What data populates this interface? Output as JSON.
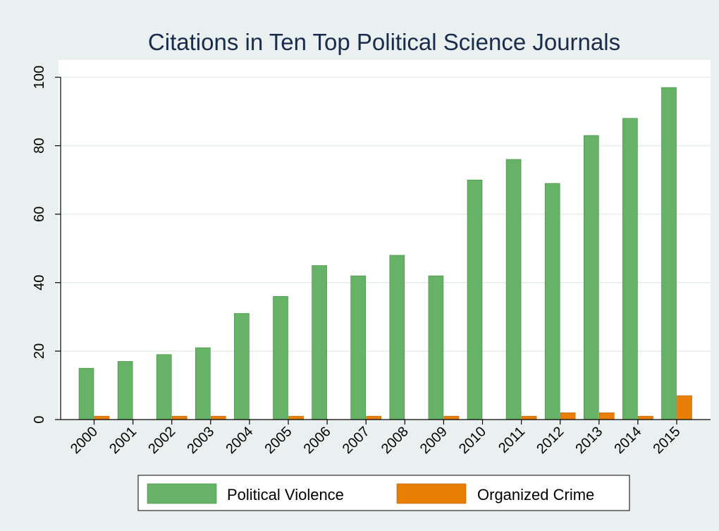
{
  "chart_data": {
    "type": "bar",
    "title": "Citations in Ten Top Political Science Journals",
    "xlabel": "",
    "ylabel": "",
    "categories": [
      "2000",
      "2001",
      "2002",
      "2003",
      "2004",
      "2005",
      "2006",
      "2007",
      "2008",
      "2009",
      "2010",
      "2011",
      "2012",
      "2013",
      "2014",
      "2015"
    ],
    "series": [
      {
        "name": "Political Violence",
        "color": "#66b266",
        "values": [
          15,
          17,
          19,
          21,
          31,
          36,
          45,
          42,
          48,
          42,
          70,
          76,
          69,
          83,
          88,
          97
        ]
      },
      {
        "name": "Organized Crime",
        "color": "#e87e04",
        "values": [
          1,
          0,
          1,
          1,
          0,
          1,
          0,
          1,
          0,
          1,
          0,
          1,
          2,
          2,
          1,
          7
        ]
      }
    ],
    "ylim": [
      0,
      100
    ],
    "yticks": [
      0,
      20,
      40,
      60,
      80,
      100
    ],
    "grid": true,
    "legend_position": "bottom",
    "colors": {
      "background": "#e9f0ef",
      "plot_background": "#ffffff",
      "grid": "#e4ecec",
      "title": "#1a2b4c"
    }
  }
}
